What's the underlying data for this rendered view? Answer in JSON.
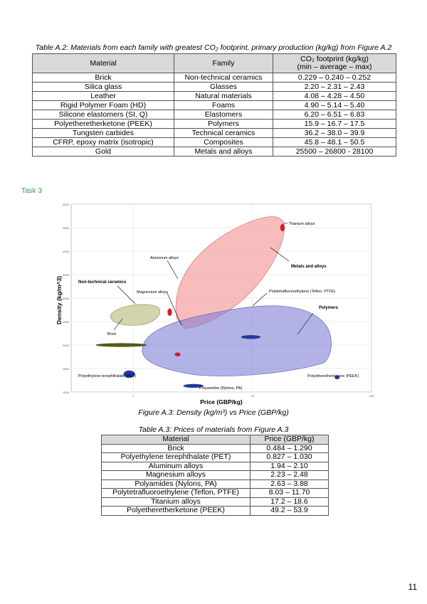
{
  "table_a2": {
    "caption": "Table A.2: Materials from each family with greatest CO₂ footprint, primary production (kg/kg) from Figure A.2",
    "headers": [
      "Material",
      "Family",
      "CO₂ footprint (kg/kg)",
      "(min – average – max)"
    ],
    "rows": [
      [
        "Brick",
        "Non-technical ceramics",
        "0.229 – 0.240 – 0.252"
      ],
      [
        "Silica glass",
        "Glasses",
        "2.20 – 2.31 – 2.43"
      ],
      [
        "Leather",
        "Natural materials",
        "4.08 – 4.28 – 4.50"
      ],
      [
        "Rigid Polymer Foam (HD)",
        "Foams",
        "4.90 – 5.14 – 5.40"
      ],
      [
        "Silicone elastomers (SI, Q)",
        "Elastomers",
        "6.20 – 6.51 – 6.83"
      ],
      [
        "Polyetheretherketone (PEEK)",
        "Polymers",
        "15.9 – 16.7 – 17.5"
      ],
      [
        "Tungsten carbides",
        "Technical ceramics",
        "36.2 – 38.0 – 39.9"
      ],
      [
        "CFRP, epoxy matrix (isotropic)",
        "Composites",
        "45.8 – 48.1 – 50.5"
      ],
      [
        "Gold",
        "Metals and alloys",
        "25500 – 26800 - 28100"
      ]
    ]
  },
  "task_label": "Task 3",
  "chart_data": {
    "type": "scatter",
    "xlabel": "Price (GBP/kg)",
    "ylabel": "Density (kg/m^3)",
    "x_scale": "log",
    "x_ticks": [
      "1",
      "10",
      "100"
    ],
    "y_ticks": [
      "5000",
      "4500",
      "4000",
      "3500",
      "3000",
      "2500",
      "2000",
      "1500",
      "1000"
    ],
    "grid": true,
    "families": [
      {
        "name": "Metals and alloys",
        "color": "#f08080"
      },
      {
        "name": "Polymers",
        "color": "#6f6fc8"
      },
      {
        "name": "Non-technical ceramics",
        "color": "#b8b88a"
      }
    ],
    "materials": [
      {
        "name": "Titanium alloys",
        "price": [
          17.2,
          18.6
        ],
        "density": 4500,
        "color": "#e8141e"
      },
      {
        "name": "Aluminum alloys",
        "price": [
          1.94,
          2.1
        ],
        "density": 2700,
        "color": "#e8141e"
      },
      {
        "name": "Magnesium alloys",
        "price": [
          2.23,
          2.48
        ],
        "density": 1800,
        "color": "#e8141e"
      },
      {
        "name": "Polytetrafluoroethylene (Teflon, PTFE)",
        "price": [
          8.03,
          11.7
        ],
        "density": 2170,
        "color": "#1e3aa8"
      },
      {
        "name": "Polyethylene terephthalate (PET)",
        "price": [
          0.827,
          1.03
        ],
        "density": 1380,
        "color": "#1e3aa8"
      },
      {
        "name": "Polyamides (Nylons, PA)",
        "price": [
          2.63,
          3.88
        ],
        "density": 1130,
        "color": "#1e3aa8"
      },
      {
        "name": "Polyetheretherketone (PEEK)",
        "price": [
          49.2,
          53.9
        ],
        "density": 1310,
        "color": "#1e3aa8"
      },
      {
        "name": "Brick",
        "price": [
          0.484,
          1.29
        ],
        "density": 2000,
        "color": "#5a5a10"
      }
    ]
  },
  "figure_caption": "Figure A.3: Density (kg/m³) vs Price (GBP/kg)",
  "table_a3": {
    "caption": "Table A.3: Prices of materials from Figure A.3",
    "headers": [
      "Material",
      "Price (GBP/kg)"
    ],
    "rows": [
      [
        "Brick",
        "0.484 – 1.290"
      ],
      [
        "Polyethylene terephthalate (PET)",
        "0.827 – 1.030"
      ],
      [
        "Aluminum alloys",
        "1.94 – 2.10"
      ],
      [
        "Magnesium alloys",
        "2.23 – 2.48"
      ],
      [
        "Polyamides (Nylons, PA)",
        "2.63 – 3.88"
      ],
      [
        "Polytetrafluoroethylene (Teflon, PTFE)",
        "8.03 – 11.70"
      ],
      [
        "Titanium alloys",
        "17.2 – 18.6"
      ],
      [
        "Polyetheretherketone (PEEK)",
        "49.2 – 53.9"
      ]
    ]
  },
  "page_number": "11"
}
